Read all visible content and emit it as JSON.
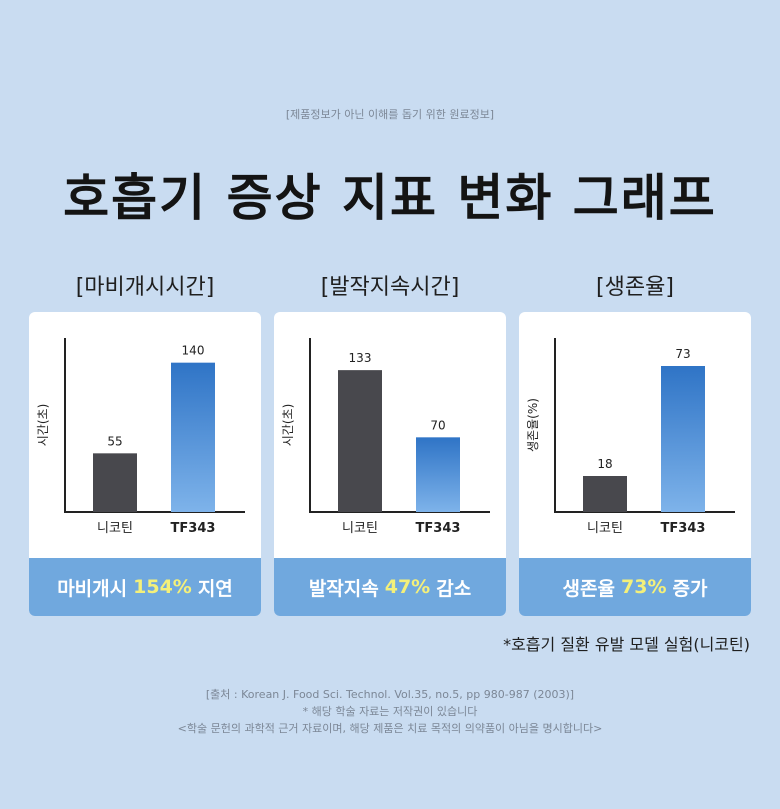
{
  "header": {
    "disclaimer": "[제품정보가 아닌 이해를 돕기 위한 원료정보]",
    "title": "호흡기 증상 지표 변화 그래프"
  },
  "colors": {
    "background": "#c9dcf1",
    "bar_dark": "#48484d",
    "bar_blue_top": "#2f74c6",
    "bar_blue_bottom": "#7eb3ea",
    "footer_bg": "#70a8de",
    "highlight": "#f4f07a"
  },
  "chart_data": [
    {
      "type": "bar",
      "title": "[마비개시시간]",
      "ylabel": "시간(초)",
      "xlabel": "",
      "categories": [
        "니코틴",
        "TF343"
      ],
      "values": [
        55,
        140
      ],
      "value_labels": [
        "55",
        "140"
      ],
      "ylim": [
        0,
        150
      ],
      "summary": {
        "prefix": "마비개시",
        "highlight": "154%",
        "suffix": "지연"
      }
    },
    {
      "type": "bar",
      "title": "[발작지속시간]",
      "ylabel": "시간(초)",
      "xlabel": "",
      "categories": [
        "니코틴",
        "TF343"
      ],
      "values": [
        133,
        70
      ],
      "value_labels": [
        "133",
        "70"
      ],
      "ylim": [
        0,
        150
      ],
      "summary": {
        "prefix": "발작지속",
        "highlight": "47%",
        "suffix": "감소"
      }
    },
    {
      "type": "bar",
      "title": "[생존율]",
      "ylabel": "생존율(%)",
      "xlabel": "",
      "categories": [
        "니코틴",
        "TF343"
      ],
      "values": [
        18,
        73
      ],
      "value_labels": [
        "18",
        "73"
      ],
      "ylim": [
        0,
        80
      ],
      "summary": {
        "prefix": "생존율",
        "highlight": "73%",
        "suffix": "증가"
      }
    }
  ],
  "footnote": "*호흡기 질환 유발 모델 실험(니코틴)",
  "source": {
    "citation": "[출처 : Korean J. Food Sci. Technol. Vol.35, no.5, pp 980-987 (2003)]",
    "copyright": "* 해당 학술 자료는 저작권이 있습니다",
    "notice": "<학술 문헌의 과학적 근거 자료이며, 해당 제품은 치료 목적의 의약품이 아님을 명시합니다>"
  }
}
